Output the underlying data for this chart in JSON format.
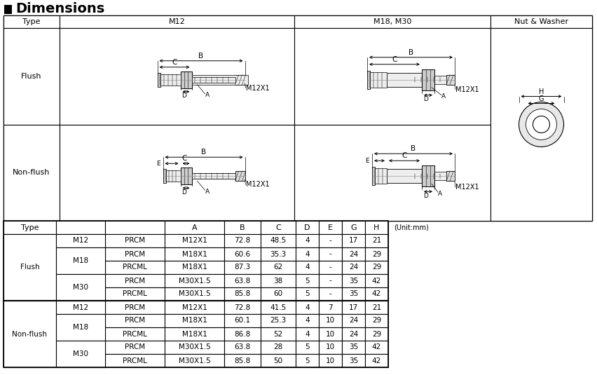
{
  "title": "Dimensions",
  "col_headers": [
    "Type",
    "M12",
    "M18, M30",
    "Nut & Washer"
  ],
  "row_labels": [
    "Flush",
    "Non-flush"
  ],
  "unit_note": "(Unit:mm)",
  "table_col_labels": [
    "Type",
    "",
    "",
    "A",
    "B",
    "C",
    "D",
    "E",
    "G",
    "H"
  ],
  "all_rows": [
    [
      "Flush",
      "M12",
      "PRCM",
      "M12X1",
      "72.8",
      "48.5",
      "4",
      "-",
      "17",
      "21"
    ],
    [
      "",
      "M18",
      "PRCM",
      "M18X1",
      "60.6",
      "35.3",
      "4",
      "-",
      "24",
      "29"
    ],
    [
      "",
      "",
      "PRCML",
      "M18X1",
      "87.3",
      "62",
      "4",
      "-",
      "24",
      "29"
    ],
    [
      "",
      "M30",
      "PRCM",
      "M30X1.5",
      "63.8",
      "38",
      "5",
      "-",
      "35",
      "42"
    ],
    [
      "",
      "",
      "PRCML",
      "M30X1.5",
      "85.8",
      "60",
      "5",
      "-",
      "35",
      "42"
    ],
    [
      "Non-flush",
      "M12",
      "PRCM",
      "M12X1",
      "72.8",
      "41.5",
      "4",
      "7",
      "17",
      "21"
    ],
    [
      "",
      "M18",
      "PRCM",
      "M18X1",
      "60.1",
      "25.3",
      "4",
      "10",
      "24",
      "29"
    ],
    [
      "",
      "",
      "PRCML",
      "M18X1",
      "86.8",
      "52",
      "4",
      "10",
      "24",
      "29"
    ],
    [
      "",
      "M30",
      "PRCM",
      "M30X1.5",
      "63.8",
      "28",
      "5",
      "10",
      "35",
      "42"
    ],
    [
      "",
      "",
      "PRCML",
      "M30X1.5",
      "85.8",
      "50",
      "5",
      "10",
      "35",
      "42"
    ]
  ],
  "type_groups": [
    [
      0,
      5,
      "Flush"
    ],
    [
      5,
      10,
      "Non-flush"
    ]
  ],
  "size_groups": [
    [
      0,
      1,
      "M12"
    ],
    [
      1,
      3,
      "M18"
    ],
    [
      3,
      5,
      "M30"
    ],
    [
      5,
      6,
      "M12"
    ],
    [
      6,
      8,
      "M18"
    ],
    [
      8,
      10,
      "M30"
    ]
  ],
  "bg_color": "#ffffff"
}
